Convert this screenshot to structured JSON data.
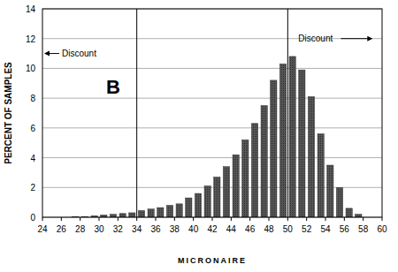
{
  "chart_data": {
    "type": "histogram",
    "x_label": "MICRONAIRE",
    "y_label": "PERCENT OF SAMPLES",
    "panel_label": "B",
    "bins": [
      27,
      28,
      29,
      30,
      31,
      32,
      33,
      34,
      35,
      36,
      37,
      38,
      39,
      40,
      41,
      42,
      43,
      44,
      45,
      46,
      47,
      48,
      49,
      50,
      51,
      52,
      53,
      54,
      55,
      56,
      57,
      58
    ],
    "values": [
      0.05,
      0.05,
      0.1,
      0.15,
      0.2,
      0.25,
      0.3,
      0.45,
      0.55,
      0.65,
      0.8,
      0.9,
      1.3,
      1.6,
      2.1,
      2.7,
      3.4,
      4.2,
      5.2,
      6.3,
      7.5,
      9.2,
      10.3,
      10.8,
      9.9,
      8.1,
      5.6,
      3.5,
      2.0,
      0.6,
      0.2
    ],
    "color": "#5a5a5a",
    "xlim": [
      24,
      60
    ],
    "xticks": [
      24,
      26,
      28,
      30,
      32,
      34,
      36,
      38,
      40,
      42,
      44,
      46,
      48,
      50,
      52,
      54,
      56,
      58,
      60
    ],
    "ylim": [
      0,
      14
    ],
    "yticks": [
      0,
      2,
      4,
      6,
      8,
      10,
      12,
      14
    ],
    "grid": true,
    "annotations": [
      {
        "text": "Discount",
        "x": 34,
        "direction": "left"
      },
      {
        "text": "Discount",
        "x": 50,
        "direction": "right"
      }
    ]
  }
}
